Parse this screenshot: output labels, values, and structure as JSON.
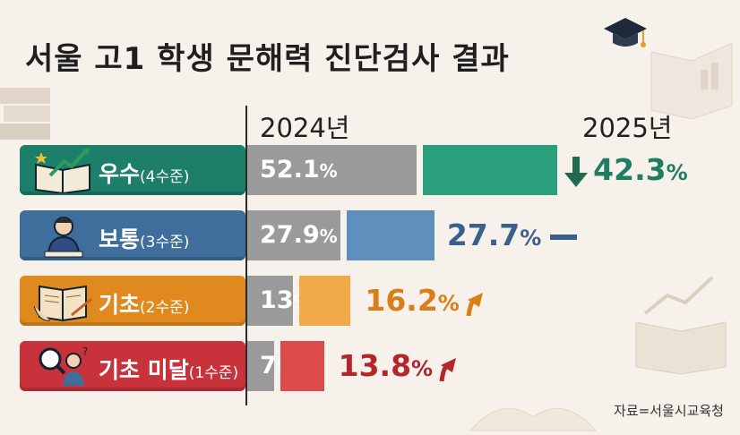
{
  "title": "서울 고1 학생 문해력 진단검사 결과",
  "source": "자료=서울시교육청",
  "chart_data": {
    "type": "bar",
    "title": "서울 고1 학생 문해력 진단검사 결과",
    "series_names": [
      "2024년",
      "2025년"
    ],
    "categories": [
      {
        "main": "우수",
        "sub": "(4수준)",
        "v2024": 52.1,
        "v2024_text": "52.1",
        "v2025": 42.3,
        "v2025_text": "42.3",
        "trend": "down",
        "color": "#1d7e6a",
        "bar2025": "#2a9f7c",
        "text2025": "#1f7d62"
      },
      {
        "main": "보통",
        "sub": "(3수준)",
        "v2024": 27.9,
        "v2024_text": "27.9",
        "v2025": 27.7,
        "v2025_text": "27.7",
        "trend": "flat",
        "color": "#3f6e9c",
        "bar2025": "#5f8fbd",
        "text2025": "#3b5f8d"
      },
      {
        "main": "기초",
        "sub": "(2수준)",
        "v2024": 13,
        "v2024_text": "13",
        "v2025": 16.2,
        "v2025_text": "16.2",
        "trend": "up",
        "color": "#e0891f",
        "bar2025": "#f0aa48",
        "text2025": "#d97f15"
      },
      {
        "main": "기초 미달",
        "sub": "(1수준)",
        "v2024": 7,
        "v2024_text": "7",
        "v2025": 13.8,
        "v2025_text": "13.8",
        "trend": "up",
        "color": "#c8323a",
        "bar2025": "#dc4b4b",
        "text2025": "#b3262c"
      }
    ],
    "unit": "%"
  }
}
